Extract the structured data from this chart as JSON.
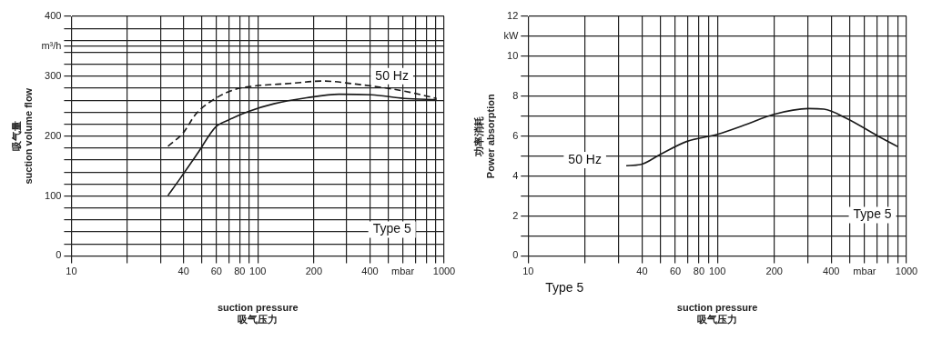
{
  "chart_data": [
    {
      "type": "line",
      "xlabel": "suction pressure\n吸气压力",
      "ylabel": "吸气量\nsuction volume flow",
      "log": "x",
      "grid": true,
      "marker": "none",
      "xlim": [
        10,
        1000
      ],
      "ylim": [
        0,
        400
      ],
      "xticks": [
        10,
        {
          "value": 20,
          "label": null
        },
        {
          "value": 30,
          "label": null
        },
        40,
        {
          "value": 50,
          "label": null
        },
        60,
        {
          "value": 70,
          "label": null
        },
        80,
        {
          "value": 90,
          "label": null
        },
        100,
        200,
        {
          "value": 300,
          "label": null
        },
        400,
        {
          "value": 500,
          "label": null
        },
        {
          "value": 600,
          "label": "mbar"
        },
        {
          "value": 700,
          "label": null
        },
        {
          "value": 800,
          "label": null
        },
        {
          "value": 900,
          "label": null
        },
        1000
      ],
      "yticks": [
        0,
        {
          "value": 20,
          "label": null
        },
        {
          "value": 40,
          "label": null
        },
        {
          "value": 60,
          "label": null
        },
        {
          "value": 80,
          "label": null
        },
        100,
        {
          "value": 120,
          "label": null
        },
        {
          "value": 140,
          "label": null
        },
        {
          "value": 160,
          "label": null
        },
        {
          "value": 180,
          "label": null
        },
        200,
        {
          "value": 220,
          "label": null
        },
        {
          "value": 240,
          "label": null
        },
        {
          "value": 260,
          "label": null
        },
        {
          "value": 280,
          "label": null
        },
        300,
        {
          "value": 320,
          "label": null
        },
        {
          "value": 340,
          "label": null
        },
        {
          "value": 350,
          "label": "m³/h"
        },
        {
          "value": 360,
          "label": null
        },
        {
          "value": 380,
          "label": null
        },
        400
      ],
      "series": [
        {
          "color": "#1a1a1a",
          "line_style": "dashed",
          "x": [
            33,
            39.7,
            46.6,
            59.3,
            75.5,
            92,
            149,
            223,
            333,
            496,
            660,
            911
          ],
          "values": [
            183,
            205,
            237,
            263,
            278,
            283,
            288,
            292,
            287,
            280,
            273,
            263
          ]
        },
        {
          "color": "#1a1a1a",
          "line_style": "solid",
          "x": [
            33,
            38.1,
            47.5,
            59.3,
            69.7,
            88.7,
            122,
            183,
            273,
            408,
            610,
            911
          ],
          "values": [
            101,
            128,
            171,
            215,
            227,
            241,
            254,
            264,
            270,
            269,
            263,
            261
          ]
        }
      ],
      "annotations": [
        "50 Hz",
        "Type 5"
      ]
    },
    {
      "type": "line",
      "xlabel": "suction pressure\n吸气压力",
      "ylabel": "功率消耗\nPower absorption",
      "log": "x",
      "grid": true,
      "marker": "none",
      "xlim": [
        10,
        1000
      ],
      "ylim": [
        0,
        12
      ],
      "xticks": [
        10,
        {
          "value": 20,
          "label": null
        },
        {
          "value": 30,
          "label": null
        },
        40,
        {
          "value": 50,
          "label": null
        },
        60,
        {
          "value": 70,
          "label": null
        },
        80,
        {
          "value": 90,
          "label": null
        },
        100,
        200,
        {
          "value": 300,
          "label": null
        },
        400,
        {
          "value": 500,
          "label": null
        },
        {
          "value": 600,
          "label": "mbar"
        },
        {
          "value": 700,
          "label": null
        },
        {
          "value": 800,
          "label": null
        },
        {
          "value": 900,
          "label": null
        },
        1000
      ],
      "yticks": [
        0,
        {
          "value": 1,
          "label": null
        },
        2,
        {
          "value": 3,
          "label": null
        },
        4,
        {
          "value": 5,
          "label": null
        },
        6,
        {
          "value": 7,
          "label": null
        },
        8,
        {
          "value": 9,
          "label": null
        },
        10,
        {
          "value": 11,
          "label": "kW"
        },
        12
      ],
      "series": [
        {
          "color": "#1a1a1a",
          "line_style": "solid",
          "x": [
            33,
            39.1,
            50.3,
            68.8,
            100,
            138,
            197,
            303,
            366,
            480,
            708,
            900
          ],
          "values": [
            4.52,
            4.57,
            5.1,
            5.73,
            6.09,
            6.54,
            7.08,
            7.38,
            7.35,
            6.9,
            6.0,
            5.47
          ]
        }
      ],
      "annotations": [
        "50 Hz",
        "Type 5",
        "Type 5"
      ]
    }
  ]
}
